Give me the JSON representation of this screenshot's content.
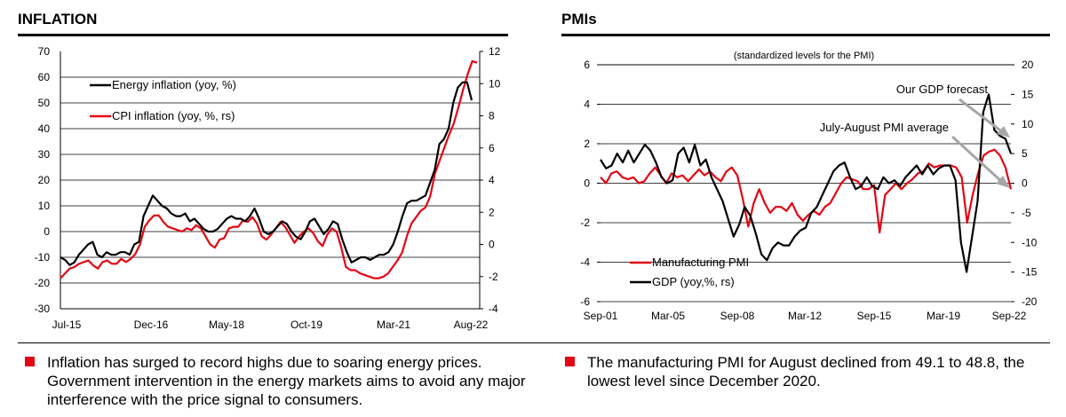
{
  "colors": {
    "black": "#000000",
    "red": "#e30613",
    "grid": "#000000",
    "arrow": "#a6a6a6"
  },
  "panels": {
    "left_title": "INFLATION",
    "right_title": "PMIs"
  },
  "bullets": {
    "left": "Inflation has surged to record highs due to soaring energy prices. Government intervention in the energy markets aims to avoid any major interference with the price signal to consumers.",
    "right": "The manufacturing PMI for August declined from 49.1 to 48.8, the lowest level since December 2020."
  },
  "chart_data": [
    {
      "type": "line",
      "title": "INFLATION",
      "x_ticks": [
        "Jul-15",
        "Dec-16",
        "May-18",
        "Oct-19",
        "Mar-21",
        "Aug-22"
      ],
      "ylim": [
        -30,
        70
      ],
      "y_ticks": [
        "70",
        "60",
        "50",
        "40",
        "30",
        "20",
        "10",
        "0",
        "-10",
        "-20",
        "-30"
      ],
      "y2lim": [
        -4,
        12
      ],
      "y2_ticks": [
        "12",
        "10",
        "8",
        "6",
        "4",
        "2",
        "0",
        "-2",
        "-4"
      ],
      "legend": "top-left",
      "series": [
        {
          "name": "Energy inflation (yoy, %)",
          "axis": "left",
          "color": "#000000",
          "values": [
            -10,
            -11,
            -13,
            -12,
            -9,
            -7,
            -5,
            -4,
            -9,
            -10,
            -8,
            -9,
            -9,
            -8,
            -8,
            -9,
            -5,
            -4,
            6,
            10,
            14,
            12,
            10,
            9,
            7,
            6,
            6,
            7,
            4,
            5,
            3,
            1,
            0,
            0,
            1,
            3,
            5,
            6,
            5,
            5,
            4,
            6,
            9,
            5,
            0,
            -1,
            0,
            2,
            4,
            3,
            0,
            -2,
            -3,
            0,
            4,
            5,
            2,
            -1,
            1,
            4,
            3,
            -3,
            -8,
            -12,
            -11,
            -10,
            -10,
            -11,
            -10,
            -9,
            -9,
            -8,
            -5,
            0,
            6,
            11,
            12,
            12,
            13,
            14,
            19,
            24,
            34,
            36,
            40,
            50,
            56,
            58,
            58,
            51
          ]
        },
        {
          "name": "CPI inflation (yoy, %, rs)",
          "axis": "right",
          "color": "#e30613",
          "values": [
            -2.1,
            -1.8,
            -1.5,
            -1.4,
            -1.2,
            -1.1,
            -1.0,
            -1.3,
            -1.5,
            -1.1,
            -1.0,
            -1.2,
            -1.2,
            -0.9,
            -1.1,
            -0.9,
            -0.6,
            0.0,
            1.1,
            1.5,
            1.8,
            1.8,
            1.4,
            1.1,
            1.0,
            0.9,
            0.8,
            1.0,
            0.9,
            1.2,
            1.0,
            0.5,
            0.0,
            -0.2,
            0.3,
            0.4,
            1.0,
            1.1,
            1.1,
            1.5,
            1.4,
            1.7,
            1.3,
            0.5,
            0.3,
            0.6,
            1.0,
            1.4,
            1.1,
            0.6,
            0.1,
            0.5,
            0.8,
            1.0,
            0.7,
            0.2,
            -0.1,
            0.6,
            1.0,
            0.8,
            -0.2,
            -1.4,
            -1.6,
            -1.6,
            -1.8,
            -1.9,
            -2.0,
            -2.1,
            -2.1,
            -2.0,
            -1.8,
            -1.4,
            -1.0,
            -0.5,
            0.5,
            1.3,
            1.7,
            2.1,
            2.3,
            3.0,
            4.4,
            5.2,
            6.0,
            6.8,
            7.5,
            8.5,
            9.6,
            10.6,
            11.4,
            11.3
          ]
        }
      ]
    },
    {
      "type": "line",
      "title": "PMIs",
      "subtitle": "(standardized levels for the PMI)",
      "x_ticks": [
        "Sep-01",
        "Mar-05",
        "Sep-08",
        "Mar-12",
        "Sep-15",
        "Mar-19",
        "Sep-22"
      ],
      "ylim": [
        -6,
        6
      ],
      "y_ticks": [
        "6",
        "4",
        "2",
        "0",
        "-2",
        "-4",
        "-6"
      ],
      "y2lim": [
        -20,
        20
      ],
      "y2_ticks": [
        "20",
        "15",
        "10",
        "5",
        "0",
        "-5",
        "-10",
        "-15",
        "-20"
      ],
      "legend": "bottom-left",
      "annotations": [
        "Our GDP forecast",
        "July-August PMI average"
      ],
      "series": [
        {
          "name": "Manufacturing PMI",
          "axis": "left",
          "color": "#e30613",
          "values": [
            0.3,
            0.0,
            0.5,
            0.6,
            0.3,
            0.2,
            0.3,
            0.0,
            0.1,
            0.5,
            0.8,
            0.4,
            0.0,
            0.5,
            0.3,
            0.4,
            0.1,
            0.4,
            0.7,
            0.4,
            0.6,
            0.3,
            0.1,
            0.6,
            0.8,
            0.4,
            -0.8,
            -2.2,
            -1.0,
            -0.3,
            -1.0,
            -1.5,
            -1.2,
            -1.2,
            -1.4,
            -1.0,
            -1.6,
            -1.9,
            -1.6,
            -1.4,
            -1.6,
            -1.2,
            -1.0,
            -0.5,
            0.0,
            0.3,
            0.2,
            0.1,
            -0.3,
            -0.3,
            -0.1,
            -2.5,
            -0.6,
            -0.3,
            0.0,
            -0.3,
            0.0,
            0.2,
            0.5,
            0.6,
            1.0,
            0.8,
            0.9,
            0.9,
            0.9,
            0.8,
            0.3,
            -2.0,
            -0.6,
            0.5,
            1.4,
            1.6,
            1.7,
            1.4,
            0.8,
            -0.3
          ]
        },
        {
          "name": "GDP (yoy,%, rs)",
          "axis": "right",
          "color": "#000000",
          "values": [
            4,
            2.5,
            3,
            5,
            3.5,
            5.5,
            3.5,
            5,
            6.5,
            5.5,
            3.5,
            1,
            0,
            0.5,
            5,
            6,
            3.5,
            6.5,
            3,
            4,
            1,
            -1,
            -3,
            -6,
            -9,
            -7,
            -4,
            -5.5,
            -8.5,
            -12,
            -13,
            -11,
            -10,
            -10.5,
            -10.5,
            -9,
            -8,
            -7.5,
            -5,
            -4,
            -2,
            0,
            2,
            3,
            3.5,
            1,
            -1,
            -0.5,
            1,
            -0.5,
            -1,
            1,
            0,
            0.5,
            -0.5,
            1,
            2,
            3,
            1.5,
            3,
            1.5,
            2.5,
            3,
            3,
            0.5,
            -10,
            -15,
            -9,
            -3,
            12,
            15,
            9,
            8,
            7.5,
            5
          ]
        }
      ]
    }
  ]
}
